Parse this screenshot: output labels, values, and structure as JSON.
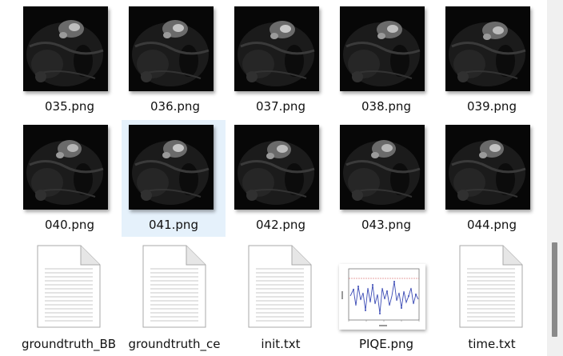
{
  "files": [
    {
      "name": "035.png",
      "type": "mri"
    },
    {
      "name": "036.png",
      "type": "mri"
    },
    {
      "name": "037.png",
      "type": "mri"
    },
    {
      "name": "038.png",
      "type": "mri"
    },
    {
      "name": "039.png",
      "type": "mri"
    },
    {
      "name": "040.png",
      "type": "mri"
    },
    {
      "name": "041.png",
      "type": "mri",
      "selected": true
    },
    {
      "name": "042.png",
      "type": "mri"
    },
    {
      "name": "043.png",
      "type": "mri"
    },
    {
      "name": "044.png",
      "type": "mri"
    },
    {
      "name": "groundtruth_BB",
      "type": "text-file"
    },
    {
      "name": "groundtruth_ce",
      "type": "text-file"
    },
    {
      "name": "init.txt",
      "type": "text-file"
    },
    {
      "name": "PIQE.png",
      "type": "chart-image"
    },
    {
      "name": "time.txt",
      "type": "text-file"
    }
  ],
  "colors": {
    "selection": "#e5f1fb",
    "scrollbar_track": "#f0f0f0",
    "scrollbar_thumb": "#8a8a8a"
  }
}
